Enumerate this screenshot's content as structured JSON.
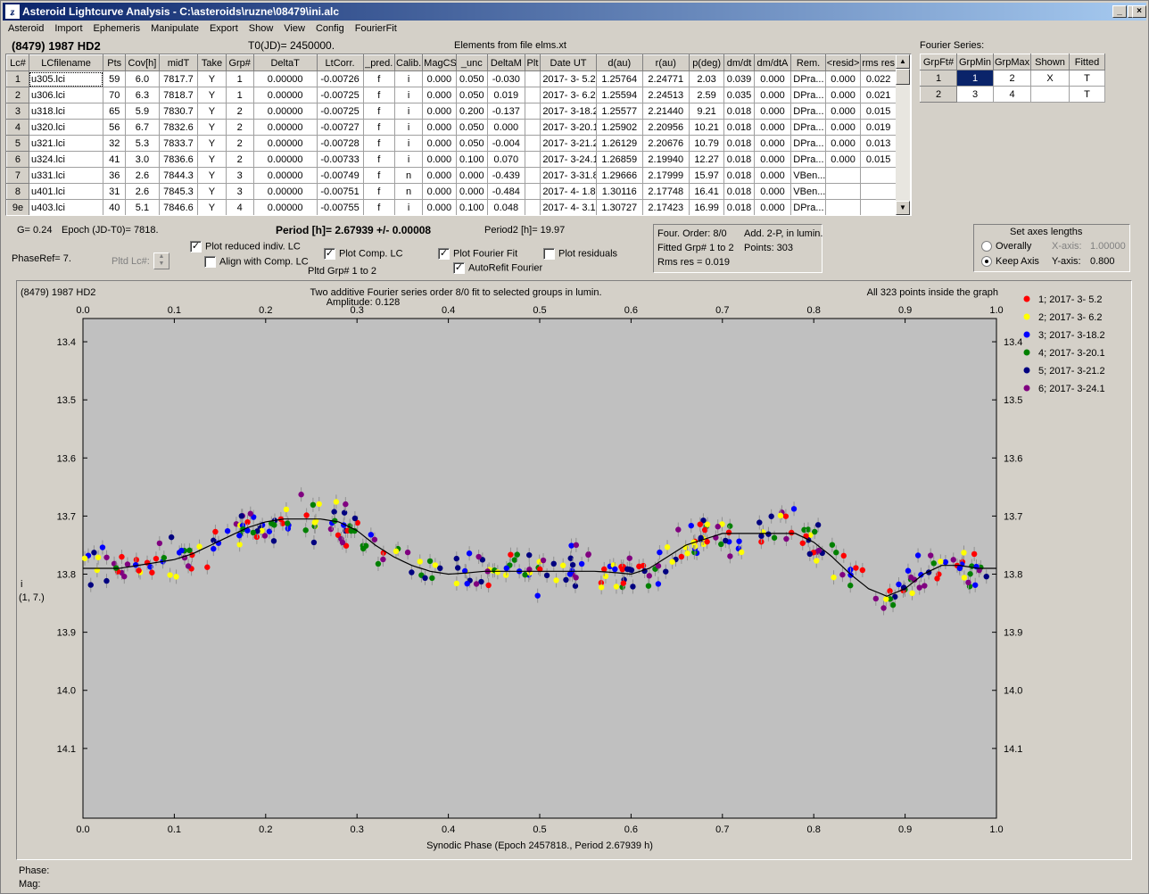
{
  "window": {
    "title": "Asteroid Lightcurve Analysis - C:\\asteroids\\ruzne\\08479\\ini.alc",
    "icon": "app-logo-icon"
  },
  "menu": [
    "Asteroid",
    "Import",
    "Ephemeris",
    "Manipulate",
    "Export",
    "Show",
    "View",
    "Config",
    "FourierFit"
  ],
  "header": {
    "asteroid": "(8479) 1987 HD2",
    "t0": "T0(JD)= 2450000.",
    "elements": "Elements from file elms.xt"
  },
  "table": {
    "columns": [
      "Lc#",
      "LCfilename",
      "Pts",
      "Cov[h]",
      "midT",
      "Take",
      "Grp#",
      "DeltaT",
      "LtCorr.",
      "_pred.",
      "Calib.",
      "MagCS",
      "_unc",
      "DeltaM",
      "Plt",
      "Date UT",
      "d(au)",
      "r(au)",
      "p(deg)",
      "dm/dt",
      "dm/dtA",
      "Rem.",
      "<resid>",
      "rms res"
    ],
    "rows": [
      [
        "1",
        "u305.lci",
        "59",
        "6.0",
        "7817.7",
        "Y",
        "1",
        "0.00000",
        "-0.00726",
        "f",
        "i",
        "0.000",
        "0.050",
        "-0.030",
        "",
        "2017- 3- 5.2",
        "1.25764",
        "2.24771",
        "2.03",
        "0.039",
        "0.000",
        "DPra...",
        "0.000",
        "0.022"
      ],
      [
        "2",
        "u306.lci",
        "70",
        "6.3",
        "7818.7",
        "Y",
        "1",
        "0.00000",
        "-0.00725",
        "f",
        "i",
        "0.000",
        "0.050",
        "0.019",
        "",
        "2017- 3- 6.2",
        "1.25594",
        "2.24513",
        "2.59",
        "0.035",
        "0.000",
        "DPra...",
        "0.000",
        "0.021"
      ],
      [
        "3",
        "u318.lci",
        "65",
        "5.9",
        "7830.7",
        "Y",
        "2",
        "0.00000",
        "-0.00725",
        "f",
        "i",
        "0.000",
        "0.200",
        "-0.137",
        "",
        "2017- 3-18.2",
        "1.25577",
        "2.21440",
        "9.21",
        "0.018",
        "0.000",
        "DPra...",
        "0.000",
        "0.015"
      ],
      [
        "4",
        "u320.lci",
        "56",
        "6.7",
        "7832.6",
        "Y",
        "2",
        "0.00000",
        "-0.00727",
        "f",
        "i",
        "0.000",
        "0.050",
        "0.000",
        "",
        "2017- 3-20.1",
        "1.25902",
        "2.20956",
        "10.21",
        "0.018",
        "0.000",
        "DPra...",
        "0.000",
        "0.019"
      ],
      [
        "5",
        "u321.lci",
        "32",
        "5.3",
        "7833.7",
        "Y",
        "2",
        "0.00000",
        "-0.00728",
        "f",
        "i",
        "0.000",
        "0.050",
        "-0.004",
        "",
        "2017- 3-21.2",
        "1.26129",
        "2.20676",
        "10.79",
        "0.018",
        "0.000",
        "DPra...",
        "0.000",
        "0.013"
      ],
      [
        "6",
        "u324.lci",
        "41",
        "3.0",
        "7836.6",
        "Y",
        "2",
        "0.00000",
        "-0.00733",
        "f",
        "i",
        "0.000",
        "0.100",
        "0.070",
        "",
        "2017- 3-24.1",
        "1.26859",
        "2.19940",
        "12.27",
        "0.018",
        "0.000",
        "DPra...",
        "0.000",
        "0.015"
      ],
      [
        "7",
        "u331.lci",
        "36",
        "2.6",
        "7844.3",
        "Y",
        "3",
        "0.00000",
        "-0.00749",
        "f",
        "n",
        "0.000",
        "0.000",
        "-0.439",
        "",
        "2017- 3-31.8",
        "1.29666",
        "2.17999",
        "15.97",
        "0.018",
        "0.000",
        "VBen...",
        "",
        ""
      ],
      [
        "8",
        "u401.lci",
        "31",
        "2.6",
        "7845.3",
        "Y",
        "3",
        "0.00000",
        "-0.00751",
        "f",
        "n",
        "0.000",
        "0.000",
        "-0.484",
        "",
        "2017- 4- 1.8",
        "1.30116",
        "2.17748",
        "16.41",
        "0.018",
        "0.000",
        "VBen...",
        "",
        ""
      ],
      [
        "9e",
        "u403.lci",
        "40",
        "5.1",
        "7846.6",
        "Y",
        "4",
        "0.00000",
        "-0.00755",
        "f",
        "i",
        "0.000",
        "0.100",
        "0.048",
        "",
        "2017- 4- 3.1",
        "1.30727",
        "2.17423",
        "16.99",
        "0.018",
        "0.000",
        "DPra...",
        "",
        ""
      ]
    ]
  },
  "fourier_table": {
    "title": "Fourier Series:",
    "columns": [
      "GrpFt#",
      "GrpMin",
      "GrpMax",
      "Shown",
      "Fitted"
    ],
    "rows": [
      [
        "1",
        "1",
        "2",
        "X",
        "T"
      ],
      [
        "2",
        "3",
        "4",
        "",
        "T"
      ]
    ]
  },
  "params": {
    "g": "G= 0.24",
    "epoch": "Epoch (JD-T0)= 7818.",
    "period": "Period [h]= 2.67939 +/- 0.00008",
    "period2": "Period2 [h]= 19.97",
    "phase_ref": "PhaseRef= 7.",
    "pltd_lc": "Pltd Lc#:",
    "pltd_grp": "Pltd Grp#  1   to   2"
  },
  "checkboxes": [
    {
      "label": "Plot reduced indiv. LC",
      "checked": true
    },
    {
      "label": "Align with Comp. LC",
      "checked": false
    },
    {
      "label": "Plot Comp. LC",
      "checked": true
    },
    {
      "label": "Plot Fourier Fit",
      "checked": true
    },
    {
      "label": "AutoRefit Fourier",
      "checked": true
    },
    {
      "label": "Plot residuals",
      "checked": false
    }
  ],
  "fit_info": {
    "order": "Four. Order:  8/0",
    "add": "Add. 2-P, in lumin.",
    "fitted": "Fitted Grp# 1 to 2",
    "points": "Points: 303",
    "rms": "Rms res     = 0.019"
  },
  "axes_box": {
    "title": "Set axes lengths",
    "overally": "Overally",
    "keep": "Keep Axis",
    "xaxis_label": "X-axis:",
    "xaxis_value": "1.00000",
    "yaxis_label": "Y-axis:",
    "yaxis_value": "0.800",
    "selected": "Keep Axis"
  },
  "chart_data": {
    "type": "scatter",
    "title": "Two additive Fourier series order 8/0 fit to selected groups in lumin.",
    "subtitle": "Amplitude: 0.128",
    "corner_left": "(8479) 1987 HD2",
    "corner_right": "All 323 points inside the graph",
    "xlabel": "Synodic Phase (Epoch 2457818., Period 2.67939 h)",
    "ylabel": "i",
    "ylabel2": "(1, 7.)",
    "xlim": [
      0,
      1
    ],
    "ylim": [
      14.22,
      13.36
    ],
    "xticks": [
      "0.0",
      "0.1",
      "0.2",
      "0.3",
      "0.4",
      "0.5",
      "0.6",
      "0.7",
      "0.8",
      "0.9",
      "1.0"
    ],
    "yticks": [
      "13.4",
      "13.5",
      "13.6",
      "13.7",
      "13.8",
      "13.9",
      "14.0",
      "14.1"
    ],
    "ytick_values": [
      13.4,
      13.5,
      13.6,
      13.7,
      13.8,
      13.9,
      14.0,
      14.1
    ],
    "series": [
      {
        "name": "1; 2017- 3- 5.2",
        "color": "#ff0000"
      },
      {
        "name": "2; 2017- 3- 6.2",
        "color": "#ffff00"
      },
      {
        "name": "3; 2017- 3-18.2",
        "color": "#0000ff"
      },
      {
        "name": "4; 2017- 3-20.1",
        "color": "#008000"
      },
      {
        "name": "5; 2017- 3-21.2",
        "color": "#000080"
      },
      {
        "name": "6; 2017- 3-24.1",
        "color": "#800080"
      }
    ],
    "fit_curve": {
      "x": [
        0.0,
        0.02,
        0.04,
        0.06,
        0.08,
        0.1,
        0.12,
        0.14,
        0.16,
        0.18,
        0.2,
        0.22,
        0.24,
        0.26,
        0.28,
        0.3,
        0.32,
        0.34,
        0.36,
        0.38,
        0.4,
        0.42,
        0.44,
        0.46,
        0.48,
        0.5,
        0.52,
        0.54,
        0.56,
        0.58,
        0.6,
        0.62,
        0.64,
        0.66,
        0.68,
        0.7,
        0.72,
        0.74,
        0.76,
        0.78,
        0.8,
        0.82,
        0.84,
        0.86,
        0.88,
        0.9,
        0.92,
        0.94,
        0.96,
        0.98,
        1.0
      ],
      "y": [
        13.79,
        13.79,
        13.79,
        13.785,
        13.78,
        13.775,
        13.765,
        13.75,
        13.735,
        13.72,
        13.71,
        13.705,
        13.705,
        13.705,
        13.71,
        13.725,
        13.75,
        13.77,
        13.785,
        13.795,
        13.8,
        13.798,
        13.795,
        13.795,
        13.795,
        13.795,
        13.795,
        13.795,
        13.795,
        13.797,
        13.8,
        13.79,
        13.77,
        13.75,
        13.74,
        13.73,
        13.73,
        13.73,
        13.73,
        13.73,
        13.745,
        13.77,
        13.8,
        13.825,
        13.838,
        13.825,
        13.8,
        13.785,
        13.785,
        13.79,
        13.79
      ]
    }
  },
  "status": {
    "phase": "Phase:",
    "mag": "Mag:"
  }
}
